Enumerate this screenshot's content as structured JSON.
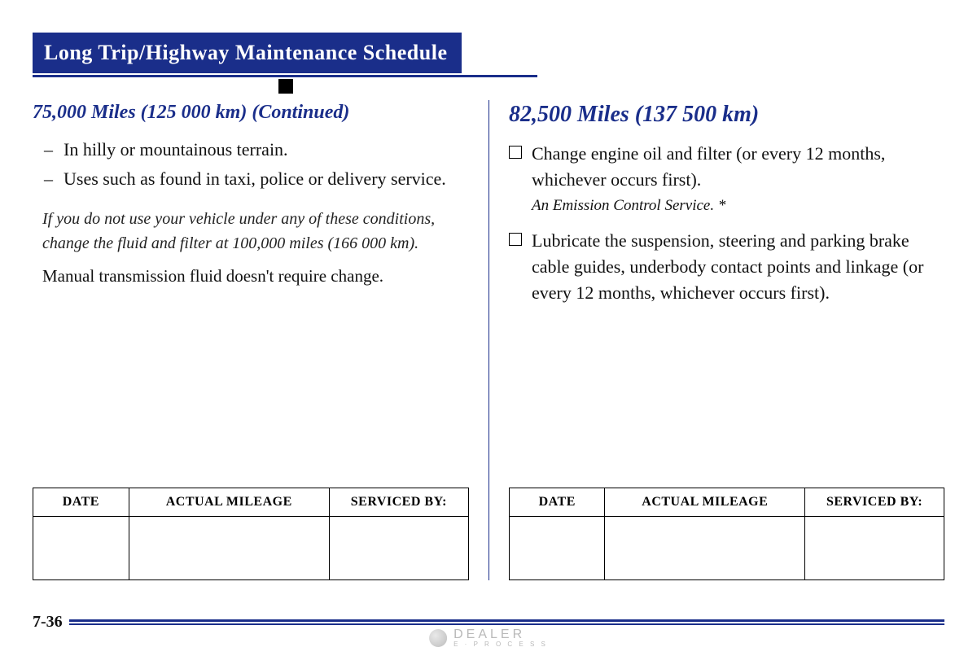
{
  "title": "Long Trip/Highway Maintenance Schedule",
  "colors": {
    "brand_blue": "#1a2e8a",
    "text": "#111111",
    "page_bg": "#ffffff"
  },
  "left": {
    "heading": "75,000 Miles (125 000 km) (Continued)",
    "bullets": [
      "In hilly or mountainous terrain.",
      "Uses such as found in taxi, police or delivery service."
    ],
    "italic_note": "If you do not use your vehicle under any of these conditions, change the fluid and filter at 100,000 miles (166 000 km).",
    "body_text": "Manual transmission fluid doesn't require change."
  },
  "right": {
    "heading": "82,500 Miles (137 500 km)",
    "items": [
      {
        "text": "Change engine oil and filter (or every 12 months, whichever occurs first).",
        "subnote": "An Emission Control Service. *"
      },
      {
        "text": "Lubricate the suspension, steering and parking brake cable guides, underbody contact points and linkage (or every 12 months, whichever occurs first).",
        "subnote": ""
      }
    ]
  },
  "table": {
    "headers": {
      "date": "DATE",
      "mileage": "ACTUAL MILEAGE",
      "serviced": "SERVICED BY:"
    }
  },
  "page_number": "7-36",
  "watermark": {
    "brand": "DEALER",
    "sub": "E · P R O C E S S"
  }
}
